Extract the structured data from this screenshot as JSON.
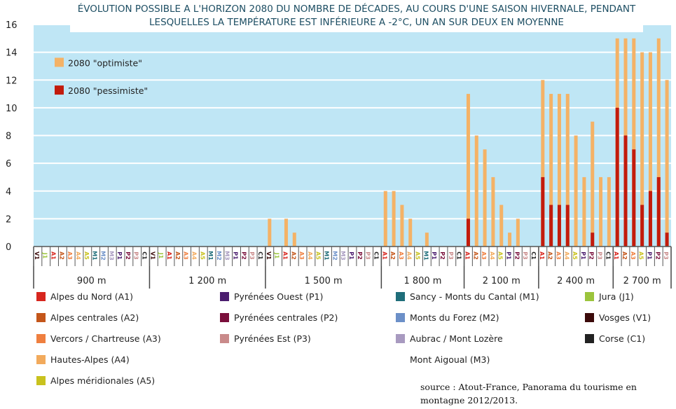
{
  "chart_data": {
    "type": "bar",
    "title": "ÉVOLUTION POSSIBLE A L'HORIZON 2080 DU NOMBRE DE DÉCADES, AU COURS D'UNE SAISON HIVERNALE, PENDANT LESQUELLES LA TEMPÉRATURE EST INFÉRIEURE A -2°C, UN AN SUR DEUX EN MOYENNE",
    "ylim": [
      0,
      16
    ],
    "yticks": [
      "0",
      "2",
      "4",
      "6",
      "8",
      "10",
      "12",
      "14",
      "16"
    ],
    "grid": true,
    "legend_placement": "top-left",
    "series_names": {
      "optimiste": "2080 \"optimiste\"",
      "pessimiste": "2080 \"pessimiste\""
    },
    "colors": {
      "optimiste": "#f4b266",
      "pessimiste": "#c21b0c",
      "background": "#bfe6f5"
    },
    "groups": [
      {
        "label": "900 m",
        "stations": [
          "V1",
          "J1",
          "A1",
          "A2",
          "A3",
          "A4",
          "A5",
          "M1",
          "M2",
          "M3",
          "P1",
          "P2",
          "P3",
          "C1"
        ],
        "optimiste": [
          0,
          0,
          0,
          0,
          0,
          0,
          0,
          0,
          0,
          0,
          0,
          0,
          0,
          0
        ],
        "pessimiste": [
          0,
          0,
          0,
          0,
          0,
          0,
          0,
          0,
          0,
          0,
          0,
          0,
          0,
          0
        ]
      },
      {
        "label": "1 200 m",
        "stations": [
          "V1",
          "J1",
          "A1",
          "A2",
          "A3",
          "A4",
          "A5",
          "M1",
          "M2",
          "M3",
          "P1",
          "P2",
          "P3",
          "C1"
        ],
        "optimiste": [
          0,
          0,
          0,
          0,
          0,
          0,
          0,
          0,
          0,
          0,
          0,
          0,
          0,
          0
        ],
        "pessimiste": [
          0,
          0,
          0,
          0,
          0,
          0,
          0,
          0,
          0,
          0,
          0,
          0,
          0,
          0
        ]
      },
      {
        "label": "1 500 m",
        "stations": [
          "V1",
          "J1",
          "A1",
          "A2",
          "A3",
          "A4",
          "A5",
          "M1",
          "M2",
          "M3",
          "P1",
          "P2",
          "P3",
          "C1"
        ],
        "optimiste": [
          2,
          0,
          2,
          1,
          0,
          0,
          0,
          0,
          0,
          0,
          0,
          0,
          0,
          0
        ],
        "pessimiste": [
          0,
          0,
          0,
          0,
          0,
          0,
          0,
          0,
          0,
          0,
          0,
          0,
          0,
          0
        ]
      },
      {
        "label": "1 800 m",
        "stations": [
          "A1",
          "A2",
          "A3",
          "A4",
          "A5",
          "M1",
          "P1",
          "P2",
          "P3",
          "C1"
        ],
        "optimiste": [
          4,
          4,
          3,
          2,
          0,
          1,
          0,
          0,
          0,
          0
        ],
        "pessimiste": [
          0,
          0,
          0,
          0,
          0,
          0,
          0,
          0,
          0,
          0
        ]
      },
      {
        "label": "2 100 m",
        "stations": [
          "A1",
          "A2",
          "A3",
          "A4",
          "A5",
          "P1",
          "P2",
          "P3",
          "C1"
        ],
        "optimiste": [
          11,
          8,
          7,
          5,
          3,
          1,
          2,
          0,
          0
        ],
        "pessimiste": [
          2,
          0,
          0,
          0,
          0,
          0,
          0,
          0,
          0
        ]
      },
      {
        "label": "2 400 m",
        "stations": [
          "A1",
          "A2",
          "A3",
          "A4",
          "A5",
          "P1",
          "P2",
          "P3",
          "C1"
        ],
        "optimiste": [
          12,
          11,
          11,
          11,
          8,
          5,
          9,
          5,
          5
        ],
        "pessimiste": [
          5,
          3,
          3,
          3,
          0,
          0,
          1,
          0,
          0
        ]
      },
      {
        "label": "2 700 m",
        "stations": [
          "A1",
          "A2",
          "A3",
          "A5",
          "P1",
          "P2",
          "P3"
        ],
        "optimiste": [
          15,
          15,
          15,
          14,
          14,
          15,
          12
        ],
        "pessimiste": [
          10,
          8,
          7,
          3,
          4,
          5,
          1
        ]
      }
    ]
  },
  "station_colors": {
    "A1": "#d7261e",
    "A2": "#c4561a",
    "A3": "#ef7f3f",
    "A4": "#f2aa5c",
    "A5": "#c9c21e",
    "P1": "#4b1d6e",
    "P2": "#7a0f3b",
    "P3": "#c98a8a",
    "M1": "#1f6e7a",
    "M2": "#6c90c8",
    "M3": "#a89ac0",
    "J1": "#9bc43c",
    "V1": "#3b0a0a",
    "C1": "#222222"
  },
  "legend": [
    {
      "code": "A1",
      "label": "Alpes du Nord (A1)"
    },
    {
      "code": "A2",
      "label": "Alpes centrales (A2)"
    },
    {
      "code": "A3",
      "label": "Vercors / Chartreuse (A3)"
    },
    {
      "code": "A4",
      "label": "Hautes-Alpes (A4)"
    },
    {
      "code": "A5",
      "label": "Alpes méridionales (A5)"
    },
    {
      "code": "P1",
      "label": "Pyrénées Ouest (P1)"
    },
    {
      "code": "P2",
      "label": "Pyrénées centrales (P2)"
    },
    {
      "code": "P3",
      "label": "Pyrénées Est (P3)"
    },
    {
      "code": "M1",
      "label": "Sancy - Monts du Cantal (M1)"
    },
    {
      "code": "M2",
      "label": "Monts du Forez (M2)"
    },
    {
      "code": "M3",
      "label": "Aubrac / Mont Lozère"
    },
    {
      "code": "",
      "label": "Mont Aigoual (M3)"
    },
    {
      "code": "J1",
      "label": "Jura (J1)"
    },
    {
      "code": "V1",
      "label": "Vosges (V1)"
    },
    {
      "code": "C1",
      "label": "Corse (C1)"
    }
  ],
  "source": {
    "line1": "source : Atout-France, Panorama du tourisme en",
    "line2": "montagne 2012/2013."
  }
}
